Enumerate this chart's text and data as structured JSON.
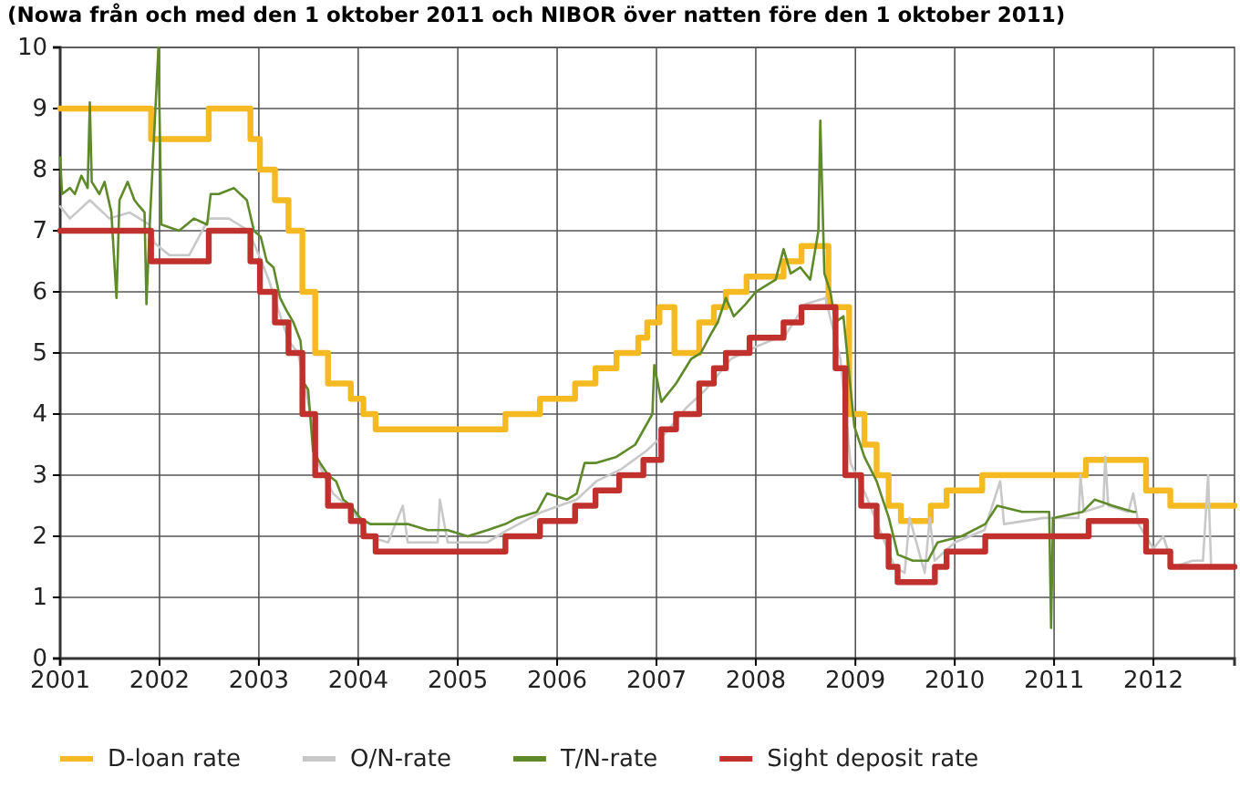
{
  "chart_data": {
    "type": "line",
    "title": "(Nowa från och med den 1 oktober 2011 och NIBOR över natten före den 1 oktober 2011)",
    "xlim": [
      "2001-01-01",
      "2012-10-25"
    ],
    "xticks": [
      {
        "value": "2001-01-01",
        "label": "2001"
      },
      {
        "value": "2002-01-01",
        "label": "2002"
      },
      {
        "value": "2003-01-01",
        "label": "2003"
      },
      {
        "value": "2004-01-01",
        "label": "2004"
      },
      {
        "value": "2005-01-01",
        "label": "2005"
      },
      {
        "value": "2006-01-01",
        "label": "2006"
      },
      {
        "value": "2007-01-01",
        "label": "2007"
      },
      {
        "value": "2008-01-01",
        "label": "2008"
      },
      {
        "value": "2009-01-01",
        "label": "2009"
      },
      {
        "value": "2010-01-01",
        "label": "2010"
      },
      {
        "value": "2011-01-01",
        "label": "2011"
      },
      {
        "value": "2012-01-01",
        "label": "2012"
      }
    ],
    "ylim": [
      0,
      10
    ],
    "yticks": [
      0,
      1,
      2,
      3,
      4,
      5,
      6,
      7,
      8,
      9,
      10
    ],
    "grid": true,
    "legend": "bottom",
    "series": [
      {
        "name": "D-loan rate",
        "type": "step",
        "color": "#f5b921",
        "x": [
          "2001-01-01",
          "2001-12-01",
          "2002-07-01",
          "2002-12-01",
          "2003-01-05",
          "2003-03-01",
          "2003-04-20",
          "2003-06-10",
          "2003-07-27",
          "2003-09-12",
          "2003-12-05",
          "2004-01-20",
          "2004-03-05",
          "2005-06-25",
          "2005-10-30",
          "2006-03-08",
          "2006-05-22",
          "2006-08-07",
          "2006-10-26",
          "2006-11-28",
          "2007-01-12",
          "2007-03-08",
          "2007-06-07",
          "2007-07-31",
          "2007-09-13",
          "2007-11-28",
          "2008-04-12",
          "2008-06-17",
          "2008-09-24",
          "2008-12-09",
          "2009-02-03",
          "2009-03-20",
          "2009-05-03",
          "2009-06-17",
          "2009-10-05",
          "2009-12-02",
          "2010-04-12",
          "2011-04-28",
          "2011-12-05",
          "2012-03-03",
          "2012-10-25"
        ],
        "values": [
          9,
          8.5,
          9,
          8.5,
          8,
          7.5,
          7,
          6,
          5,
          4.5,
          4.25,
          4,
          3.75,
          4,
          4.25,
          4.5,
          4.75,
          5,
          5.25,
          5.5,
          5.75,
          5,
          5.5,
          5.75,
          6,
          6.25,
          6.5,
          6.75,
          5.75,
          4,
          3.5,
          3,
          2.5,
          2.25,
          2.5,
          2.75,
          3,
          3.25,
          2.75,
          2.5,
          2.5
        ]
      },
      {
        "name": "O/N-rate",
        "type": "line",
        "color": "#c8c8c8",
        "x": [
          "2001-01-01",
          "2001-02-06",
          "2001-04-20",
          "2001-07-01",
          "2001-09-13",
          "2001-11-25",
          "2001-12-14",
          "2002-02-06",
          "2002-04-20",
          "2002-07-01",
          "2002-09-13",
          "2002-11-25",
          "2003-01-01",
          "2003-02-06",
          "2003-03-14",
          "2003-04-20",
          "2003-05-25",
          "2003-07-01",
          "2003-08-07",
          "2003-10-01",
          "2003-12-14",
          "2004-02-06",
          "2004-04-20",
          "2004-06-13",
          "2004-07-01",
          "2004-10-19",
          "2004-10-27",
          "2004-11-25",
          "2005-04-20",
          "2005-07-01",
          "2005-11-07",
          "2006-03-14",
          "2006-05-25",
          "2006-08-25",
          "2006-11-25",
          "2007-02-06",
          "2007-04-20",
          "2007-07-01",
          "2007-08-07",
          "2007-10-01",
          "2008-01-01",
          "2008-04-20",
          "2008-07-01",
          "2008-09-13",
          "2008-11-07",
          "2008-12-14",
          "2009-02-06",
          "2009-04-01",
          "2009-05-25",
          "2009-07-01",
          "2009-07-19",
          "2009-09-13",
          "2009-10-01",
          "2009-10-19",
          "2010-01-01",
          "2010-04-20",
          "2010-06-17",
          "2010-07-01",
          "2010-11-25",
          "2011-04-01",
          "2011-04-08",
          "2011-04-20",
          "2011-07-01",
          "2011-07-08",
          "2011-07-19",
          "2011-10-01",
          "2011-10-19",
          "2011-11-07",
          "2012-01-01",
          "2012-02-06",
          "2012-03-14",
          "2012-05-25",
          "2012-07-01",
          "2012-07-20",
          "2012-07-31",
          "2012-10-25"
        ],
        "values": [
          7.4,
          7.2,
          7.5,
          7.2,
          7.3,
          7.1,
          6.8,
          6.6,
          6.6,
          7.2,
          7.2,
          7,
          6.6,
          6.2,
          5.7,
          5.2,
          5,
          4.2,
          3.2,
          2.7,
          2.4,
          2,
          1.9,
          2.5,
          1.9,
          1.9,
          2.6,
          1.9,
          1.9,
          2.1,
          2.4,
          2.6,
          2.9,
          3.1,
          3.4,
          3.7,
          4.1,
          4.4,
          4.6,
          4.9,
          5.1,
          5.3,
          5.8,
          5.9,
          4.9,
          3.2,
          2.7,
          2.1,
          1.5,
          1.4,
          2.3,
          1.4,
          2.3,
          1.6,
          1.9,
          2.1,
          2.9,
          2.2,
          2.3,
          2.3,
          3,
          2.4,
          2.5,
          3.3,
          2.5,
          2.4,
          2.7,
          2.2,
          1.8,
          2,
          1.5,
          1.6,
          1.6,
          3,
          1.5,
          1.5
        ]
      },
      {
        "name": "T/N-rate",
        "type": "line",
        "color": "#5f8a2a",
        "x": [
          "2001-01-01",
          "2001-01-08",
          "2001-02-06",
          "2001-02-24",
          "2001-03-20",
          "2001-04-12",
          "2001-04-20",
          "2001-04-27",
          "2001-05-25",
          "2001-06-13",
          "2001-07-08",
          "2001-07-27",
          "2001-08-07",
          "2001-09-06",
          "2001-10-01",
          "2001-10-19",
          "2001-11-07",
          "2001-11-14",
          "2001-11-25",
          "2001-12-28",
          "2002-01-08",
          "2002-03-14",
          "2002-05-08",
          "2002-06-25",
          "2002-07-08",
          "2002-08-07",
          "2002-10-01",
          "2002-11-18",
          "2002-12-14",
          "2003-01-08",
          "2003-01-30",
          "2003-02-24",
          "2003-03-20",
          "2003-04-12",
          "2003-05-08",
          "2003-06-03",
          "2003-06-17",
          "2003-07-01",
          "2003-07-19",
          "2003-08-14",
          "2003-09-13",
          "2003-10-12",
          "2003-11-07",
          "2003-12-05",
          "2004-01-08",
          "2004-02-14",
          "2004-04-20",
          "2004-07-01",
          "2004-09-13",
          "2004-11-25",
          "2005-02-06",
          "2005-04-20",
          "2005-06-25",
          "2005-08-07",
          "2005-10-19",
          "2005-11-25",
          "2006-02-06",
          "2006-03-14",
          "2006-04-12",
          "2006-05-25",
          "2006-08-07",
          "2006-10-15",
          "2006-12-17",
          "2006-12-24",
          "2007-01-19",
          "2007-03-14",
          "2007-05-08",
          "2007-06-13",
          "2007-07-19",
          "2007-08-14",
          "2007-09-13",
          "2007-10-12",
          "2007-11-25",
          "2008-01-01",
          "2008-02-06",
          "2008-03-14",
          "2008-04-12",
          "2008-05-08",
          "2008-06-13",
          "2008-07-19",
          "2008-08-18",
          "2008-08-25",
          "2008-09-09",
          "2008-10-01",
          "2008-10-19",
          "2008-11-18",
          "2008-12-28",
          "2009-02-03",
          "2009-03-20",
          "2009-05-04",
          "2009-06-06",
          "2009-07-31",
          "2009-09-24",
          "2009-10-30",
          "2010-01-26",
          "2010-04-23",
          "2010-06-06",
          "2010-09-06",
          "2010-12-14",
          "2010-12-21",
          "2010-12-28",
          "2011-04-16",
          "2011-05-30",
          "2011-08-04",
          "2011-10-19",
          "2011-10-27"
        ],
        "values": [
          8.2,
          7.6,
          7.7,
          7.6,
          7.9,
          7.7,
          9.1,
          7.8,
          7.6,
          7.8,
          7.3,
          5.9,
          7.5,
          7.8,
          7.5,
          7.4,
          7.3,
          5.8,
          7,
          10,
          7.1,
          7,
          7.2,
          7.1,
          7.6,
          7.6,
          7.7,
          7.5,
          7,
          6.9,
          6.5,
          6.4,
          5.9,
          5.7,
          5.5,
          5.2,
          4.5,
          4.4,
          3.4,
          3.2,
          3,
          2.9,
          2.6,
          2.5,
          2.3,
          2.2,
          2.2,
          2.2,
          2.1,
          2.1,
          2,
          2.1,
          2.2,
          2.3,
          2.4,
          2.7,
          2.6,
          2.7,
          3.2,
          3.2,
          3.3,
          3.5,
          4,
          4.8,
          4.2,
          4.5,
          4.9,
          5,
          5.3,
          5.5,
          5.9,
          5.6,
          5.8,
          6,
          6.1,
          6.2,
          6.7,
          6.3,
          6.4,
          6.2,
          7,
          8.8,
          6.3,
          6,
          5.5,
          5.6,
          3.8,
          3.3,
          2.9,
          2.3,
          1.7,
          1.6,
          1.6,
          1.9,
          2,
          2.2,
          2.5,
          2.4,
          2.4,
          0.5,
          2.3,
          2.4,
          2.6,
          2.5,
          2.4,
          2.4
        ]
      },
      {
        "name": "Sight deposit rate",
        "type": "step",
        "color": "#c0302c",
        "x": [
          "2001-01-01",
          "2001-12-01",
          "2002-07-01",
          "2002-12-01",
          "2003-01-05",
          "2003-03-01",
          "2003-04-20",
          "2003-06-10",
          "2003-07-27",
          "2003-09-12",
          "2003-12-05",
          "2004-01-20",
          "2004-03-05",
          "2005-06-25",
          "2005-10-30",
          "2006-03-08",
          "2006-05-22",
          "2006-08-17",
          "2006-11-14",
          "2007-01-19",
          "2007-03-14",
          "2007-06-07",
          "2007-07-31",
          "2007-09-13",
          "2007-12-09",
          "2008-04-12",
          "2008-06-17",
          "2008-10-20",
          "2008-11-25",
          "2009-01-22",
          "2009-03-20",
          "2009-05-03",
          "2009-06-05",
          "2009-10-20",
          "2009-12-02",
          "2010-04-23",
          "2011-05-08",
          "2011-12-05",
          "2012-03-03",
          "2012-10-25"
        ],
        "values": [
          7,
          6.5,
          7,
          6.5,
          6,
          5.5,
          5,
          4,
          3,
          2.5,
          2.25,
          2,
          1.75,
          2,
          2.25,
          2.5,
          2.75,
          3,
          3.25,
          3.75,
          4,
          4.5,
          4.75,
          5,
          5.25,
          5.5,
          5.75,
          4.75,
          3,
          2.5,
          2,
          1.5,
          1.25,
          1.5,
          1.75,
          2,
          2.25,
          1.75,
          1.5,
          1.5
        ]
      }
    ]
  }
}
